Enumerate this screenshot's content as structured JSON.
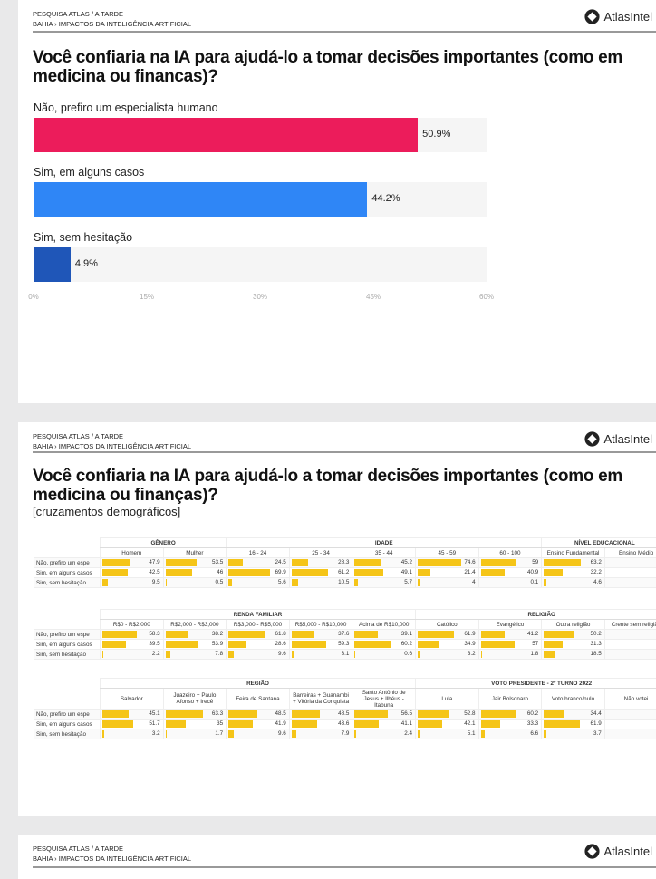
{
  "header": {
    "survey": "PESQUISA ATLAS / A TARDE",
    "breadcrumb": "BAHIA › IMPACTOS DA INTELIGÊNCIA ARTIFICIAL",
    "logo": "AtlasIntel"
  },
  "slide1": {
    "title": "Você confiaria na IA para ajudá-lo a tomar decisões importantes (como em medicina ou financas)?",
    "chart_data": {
      "type": "bar",
      "orientation": "horizontal",
      "categories": [
        "Não, prefiro um especialista humano",
        "Sim, em alguns casos",
        "Sim, sem hesitação"
      ],
      "values": [
        50.9,
        44.2,
        4.9
      ],
      "value_labels": [
        "50.9%",
        "44.2%",
        "4.9%"
      ],
      "colors": [
        "#ec1c5b",
        "#2f86f6",
        "#1f56b8"
      ],
      "xlim": [
        0,
        60
      ],
      "ticks": [
        "0%",
        "15%",
        "30%",
        "45%",
        "60%"
      ]
    }
  },
  "slide2": {
    "title": "Você confiaria na IA para ajudá-lo a tomar decisões importantes (como em medicina ou finanças)?",
    "subtitle": "[cruzamentos demográficos]",
    "row_labels": [
      "Não, prefiro um espe",
      "Sim, em alguns casos",
      "Sim, sem hesitação"
    ],
    "bar_color": "#f5c518",
    "tables": [
      {
        "groups": [
          {
            "name": "GÊNERO",
            "span": 2
          },
          {
            "name": "IDADE",
            "span": 5
          },
          {
            "name": "NÍVEL EDUCACIONAL",
            "span": 2
          }
        ],
        "columns": [
          {
            "name": "Homem",
            "values": [
              47.9,
              42.5,
              9.5
            ]
          },
          {
            "name": "Mulher",
            "values": [
              53.5,
              46,
              0.5
            ]
          },
          {
            "name": "16 - 24",
            "values": [
              24.5,
              69.9,
              5.6
            ]
          },
          {
            "name": "25 - 34",
            "values": [
              28.3,
              61.2,
              10.5
            ]
          },
          {
            "name": "35 - 44",
            "values": [
              45.2,
              49.1,
              5.7
            ]
          },
          {
            "name": "45 - 59",
            "values": [
              74.6,
              21.4,
              4
            ]
          },
          {
            "name": "60 - 100",
            "values": [
              59,
              40.9,
              0.1
            ]
          },
          {
            "name": "Ensino Fundamental",
            "values": [
              63.2,
              32.2,
              4.6
            ]
          },
          {
            "name": "Ensino Médio",
            "values": [
              null,
              null,
              null
            ]
          }
        ]
      },
      {
        "groups": [
          {
            "name": "RENDA FAMILIAR",
            "span": 5
          },
          {
            "name": "RELIGIÃO",
            "span": 4
          }
        ],
        "columns": [
          {
            "name": "R$0 - R$2,000",
            "values": [
              58.3,
              39.5,
              2.2
            ]
          },
          {
            "name": "R$2,000 - R$3,000",
            "values": [
              38.2,
              53.9,
              7.8
            ]
          },
          {
            "name": "R$3,000 - R$5,000",
            "values": [
              61.8,
              28.6,
              9.6
            ]
          },
          {
            "name": "R$5,000 - R$10,000",
            "values": [
              37.6,
              59.3,
              3.1
            ]
          },
          {
            "name": "Acima de R$10,000",
            "values": [
              39.1,
              60.2,
              0.6
            ]
          },
          {
            "name": "Católico",
            "values": [
              61.9,
              34.9,
              3.2
            ]
          },
          {
            "name": "Evangélico",
            "values": [
              41.2,
              57,
              1.8
            ]
          },
          {
            "name": "Outra religião",
            "values": [
              50.2,
              31.3,
              18.5
            ]
          },
          {
            "name": "Crente sem religião",
            "values": [
              null,
              null,
              null
            ]
          }
        ]
      },
      {
        "groups": [
          {
            "name": "REGIÃO",
            "span": 5
          },
          {
            "name": "VOTO PRESIDENTE - 2º TURNO 2022",
            "span": 4
          }
        ],
        "columns": [
          {
            "name": "Salvador",
            "values": [
              45.1,
              51.7,
              3.2
            ]
          },
          {
            "name": "Juazeiro + Paulo Afonso + Irecê",
            "values": [
              63.3,
              35,
              1.7
            ]
          },
          {
            "name": "Feira de Santana",
            "values": [
              48.5,
              41.9,
              9.6
            ]
          },
          {
            "name": "Barreiras + Guanambi + Vitória da Conquista",
            "values": [
              48.5,
              43.6,
              7.9
            ]
          },
          {
            "name": "Santo Antônio de Jesus + Ilhéus - Itabuna",
            "values": [
              56.5,
              41.1,
              2.4
            ]
          },
          {
            "name": "Lula",
            "values": [
              52.8,
              42.1,
              5.1
            ]
          },
          {
            "name": "Jair Bolsonaro",
            "values": [
              60.2,
              33.3,
              6.6
            ]
          },
          {
            "name": "Voto branco/nulo",
            "values": [
              34.4,
              61.9,
              3.7
            ]
          },
          {
            "name": "Não votei",
            "values": [
              null,
              null,
              null
            ]
          }
        ]
      }
    ]
  }
}
